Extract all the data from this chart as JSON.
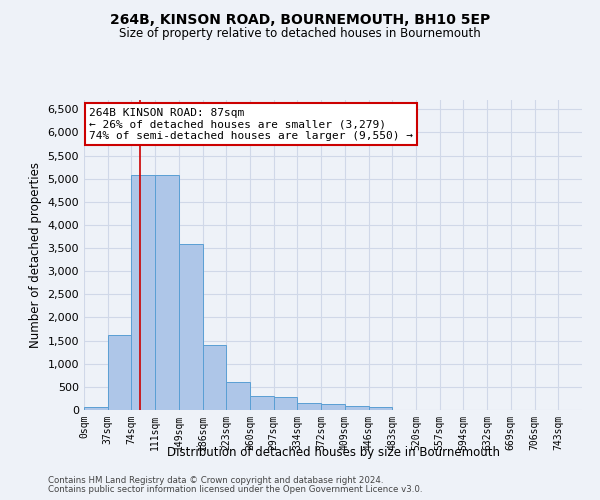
{
  "title1": "264B, KINSON ROAD, BOURNEMOUTH, BH10 5EP",
  "title2": "Size of property relative to detached houses in Bournemouth",
  "xlabel": "Distribution of detached houses by size in Bournemouth",
  "ylabel": "Number of detached properties",
  "footer1": "Contains HM Land Registry data © Crown copyright and database right 2024.",
  "footer2": "Contains public sector information licensed under the Open Government Licence v3.0.",
  "bin_labels": [
    "0sqm",
    "37sqm",
    "74sqm",
    "111sqm",
    "149sqm",
    "186sqm",
    "223sqm",
    "260sqm",
    "297sqm",
    "334sqm",
    "372sqm",
    "409sqm",
    "446sqm",
    "483sqm",
    "520sqm",
    "557sqm",
    "594sqm",
    "632sqm",
    "669sqm",
    "706sqm",
    "743sqm"
  ],
  "bar_values": [
    60,
    1620,
    5080,
    5080,
    3580,
    1400,
    610,
    300,
    290,
    155,
    120,
    90,
    60,
    0,
    0,
    0,
    0,
    0,
    0,
    0
  ],
  "bar_color": "#aec6e8",
  "bar_edge_color": "#5a9fd4",
  "grid_color": "#d0d8e8",
  "property_line_x": 87,
  "bin_width": 37,
  "annotation_line1": "264B KINSON ROAD: 87sqm",
  "annotation_line2": "← 26% of detached houses are smaller (3,279)",
  "annotation_line3": "74% of semi-detached houses are larger (9,550) →",
  "annotation_box_color": "#ffffff",
  "annotation_box_edge": "#cc0000",
  "ylim": [
    0,
    6700
  ],
  "yticks": [
    0,
    500,
    1000,
    1500,
    2000,
    2500,
    3000,
    3500,
    4000,
    4500,
    5000,
    5500,
    6000,
    6500
  ],
  "background_color": "#eef2f8"
}
